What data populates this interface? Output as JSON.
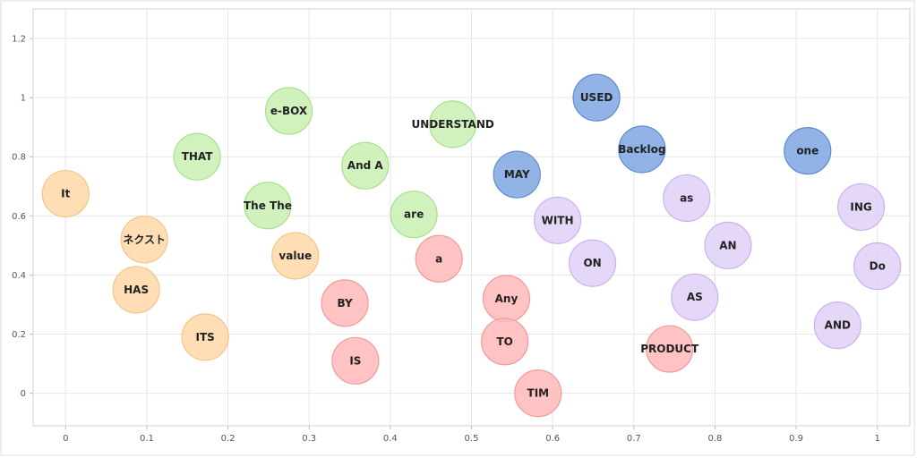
{
  "chart_data": {
    "type": "scatter",
    "title": "",
    "xlabel": "",
    "ylabel": "",
    "xlim": [
      -0.04,
      1.04
    ],
    "ylim": [
      -0.11,
      1.3
    ],
    "x_ticks": [
      0,
      0.1,
      0.2,
      0.3,
      0.4,
      0.5,
      0.6,
      0.7,
      0.8,
      0.9,
      1
    ],
    "x_tick_labels": [
      "0",
      "0.1",
      "0.2",
      "0.3",
      "0.4",
      "0.5",
      "0.6",
      "0.7",
      "0.8",
      "0.9",
      "1"
    ],
    "y_ticks": [
      0,
      0.2,
      0.4,
      0.6,
      0.8,
      1,
      1.2
    ],
    "y_tick_labels": [
      "0",
      "0.2",
      "0.4",
      "0.6",
      "0.8",
      "1",
      "1.2"
    ],
    "grid": true,
    "series": [
      {
        "color": "#ffd8a8",
        "stroke": "#f5c58a",
        "points": [
          {
            "label": "It",
            "x": 0.0,
            "y": 0.675
          },
          {
            "label": "ネクスト",
            "x": 0.097,
            "y": 0.52
          },
          {
            "label": "HAS",
            "x": 0.087,
            "y": 0.35
          },
          {
            "label": "ITS",
            "x": 0.172,
            "y": 0.19
          },
          {
            "label": "value",
            "x": 0.283,
            "y": 0.465
          }
        ]
      },
      {
        "color": "#c9f0b0",
        "stroke": "#a8e08a",
        "points": [
          {
            "label": "THAT",
            "x": 0.162,
            "y": 0.8
          },
          {
            "label": "e-BOX",
            "x": 0.275,
            "y": 0.955
          },
          {
            "label": "The The",
            "x": 0.249,
            "y": 0.635
          },
          {
            "label": "And A",
            "x": 0.369,
            "y": 0.77
          },
          {
            "label": "are",
            "x": 0.429,
            "y": 0.605
          },
          {
            "label": "UNDERSTAND",
            "x": 0.477,
            "y": 0.91
          }
        ]
      },
      {
        "color": "#ffb8b8",
        "stroke": "#f09a9a",
        "points": [
          {
            "label": "a",
            "x": 0.46,
            "y": 0.455
          },
          {
            "label": "BY",
            "x": 0.344,
            "y": 0.305
          },
          {
            "label": "IS",
            "x": 0.357,
            "y": 0.11
          },
          {
            "label": "Any",
            "x": 0.543,
            "y": 0.32
          },
          {
            "label": "TO",
            "x": 0.541,
            "y": 0.175
          },
          {
            "label": "TIM",
            "x": 0.582,
            "y": 0.0
          },
          {
            "label": "PRODUCT",
            "x": 0.744,
            "y": 0.15
          }
        ]
      },
      {
        "color": "#7ea6e0",
        "stroke": "#5f8bd0",
        "points": [
          {
            "label": "MAY",
            "x": 0.556,
            "y": 0.74
          },
          {
            "label": "USED",
            "x": 0.654,
            "y": 1.0
          },
          {
            "label": "Backlog",
            "x": 0.71,
            "y": 0.825
          },
          {
            "label": "one",
            "x": 0.914,
            "y": 0.82
          }
        ]
      },
      {
        "color": "#e0d0f7",
        "stroke": "#c9b3ef",
        "points": [
          {
            "label": "WITH",
            "x": 0.606,
            "y": 0.585
          },
          {
            "label": "ON",
            "x": 0.649,
            "y": 0.44
          },
          {
            "label": "as",
            "x": 0.765,
            "y": 0.66
          },
          {
            "label": "AN",
            "x": 0.816,
            "y": 0.5
          },
          {
            "label": "AS",
            "x": 0.775,
            "y": 0.325
          },
          {
            "label": "ING",
            "x": 0.98,
            "y": 0.63
          },
          {
            "label": "Do",
            "x": 1.0,
            "y": 0.43
          },
          {
            "label": "AND",
            "x": 0.951,
            "y": 0.23
          }
        ]
      }
    ]
  }
}
